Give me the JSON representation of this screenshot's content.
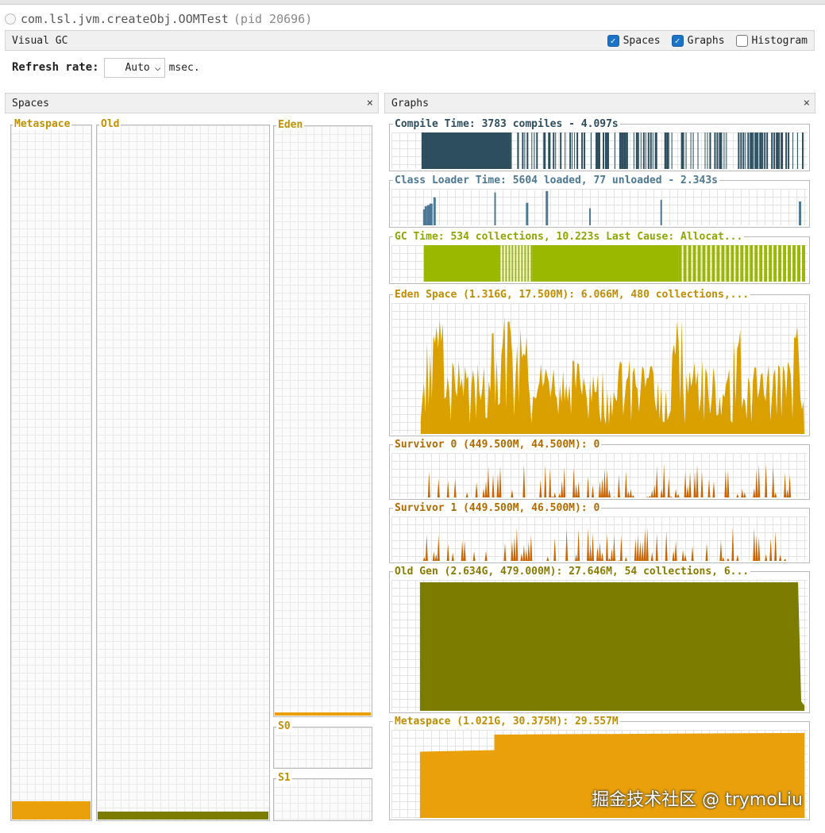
{
  "window": {
    "title": "com.lsl.jvm.createObj.OOMTest",
    "pid": "(pid 20696)"
  },
  "header": {
    "title": "Visual GC",
    "options": [
      {
        "label": "Spaces",
        "checked": true
      },
      {
        "label": "Graphs",
        "checked": true
      },
      {
        "label": "Histogram",
        "checked": false
      }
    ]
  },
  "refresh": {
    "label": "Refresh rate:",
    "value": "Auto",
    "unit": "msec."
  },
  "spaces_pane": {
    "title": "Spaces",
    "close": "×",
    "metaspace": {
      "label": "Metaspace",
      "color": "#e9a00a",
      "fill_fraction": 0.026
    },
    "old": {
      "label": "Old",
      "color": "#7c7c00",
      "fill_fraction": 0.011
    },
    "eden": {
      "label": "Eden",
      "color": "#e9a00a",
      "fill_fraction": 0.006
    },
    "s0": {
      "label": "S0",
      "color": "#e9a00a",
      "fill_fraction": 0
    },
    "s1": {
      "label": "S1",
      "color": "#e9a00a",
      "fill_fraction": 0
    }
  },
  "graphs_pane": {
    "title": "Graphs",
    "close": "×",
    "graphs": [
      {
        "id": "compile",
        "title": "Compile Time: 3783 compiles - 4.097s",
        "color": "#2d4e5f",
        "title_color": "#2d4e5f"
      },
      {
        "id": "classloader",
        "title": "Class Loader Time: 5604 loaded, 77 unloaded - 2.343s",
        "color": "#4a7896",
        "title_color": "#4a7896"
      },
      {
        "id": "gc",
        "title": "GC Time: 534 collections, 10.223s  Last Cause: Allocat...",
        "color": "#9ab800",
        "title_color": "#8aa800"
      },
      {
        "id": "eden",
        "title": "Eden Space (1.316G, 17.500M): 6.066M, 480 collections,...",
        "color": "#d9a000",
        "title_color": "#c08d00"
      },
      {
        "id": "survivor0",
        "title": "Survivor 0 (449.500M, 44.500M): 0",
        "color": "#c96400",
        "title_color": "#b06a00"
      },
      {
        "id": "survivor1",
        "title": "Survivor 1 (449.500M, 46.500M): 0",
        "color": "#c96400",
        "title_color": "#b06a00"
      },
      {
        "id": "oldgen",
        "title": "Old Gen (2.634G, 479.000M): 27.646M, 54 collections, 6...",
        "color": "#7c7c00",
        "title_color": "#8a7a00"
      },
      {
        "id": "metaspace",
        "title": "Metaspace (1.021G, 30.375M): 29.557M",
        "color": "#e9a00a",
        "title_color": "#c08d00"
      }
    ]
  },
  "watermark": "掘金技术社区 @ trymoLiu"
}
